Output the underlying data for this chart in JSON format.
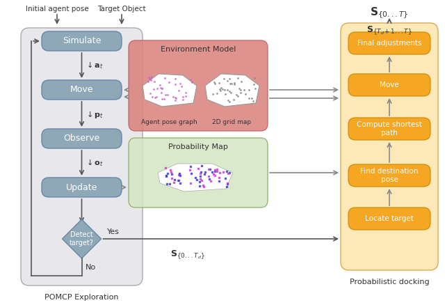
{
  "fig_width": 6.4,
  "fig_height": 4.38,
  "bg_color": "#ffffff",
  "left_panel_bg": "#e8e8ec",
  "left_panel_label": "POMCP Exploration",
  "right_panel_bg": "#fde8b8",
  "right_panel_label": "Probabilistic docking",
  "env_model_bg": "#d9807a",
  "prob_map_bg": "#d4e6c3",
  "flow_box_color": "#8fa8b8",
  "right_box_color": "#f5a623",
  "diamond_color": "#8fa8b8",
  "left_boxes": [
    "Simulate",
    "Move",
    "Observe",
    "Update"
  ],
  "right_boxes": [
    "Final adjustments",
    "Move",
    "Compute shortest\npath",
    "Find destination\npose",
    "Locate target"
  ],
  "env_model_title": "Environment Model",
  "prob_map_title": "Probability Map",
  "env_map_labels": [
    "Agent pose graph",
    "2D grid map"
  ],
  "title_top": "$\\mathbf{S}_{\\{0...T\\}}$",
  "title_right_panel": "$\\mathbf{S}_{\\{T_d+1...T\\}}$",
  "label_at": "$\\downarrow \\mathbf{a}_t$",
  "label_pt": "$\\downarrow \\mathbf{p}_t$",
  "label_ot": "$\\downarrow \\mathbf{o}_t$",
  "label_sd": "$\\mathbf{S}_{\\{0...T_d\\}}$",
  "yes_label": "Yes",
  "no_label": "No",
  "detect_label": "Detect\ntarget?",
  "initial_agent_pose": "Initial agent pose",
  "target_object": "Target Object"
}
